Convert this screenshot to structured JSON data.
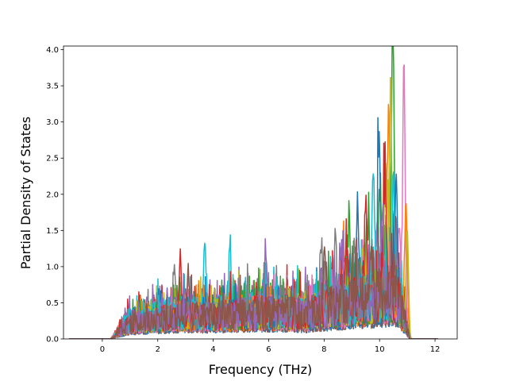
{
  "chart_data": {
    "type": "line",
    "title": "",
    "xlabel": "Frequency (THz)",
    "ylabel": "Partial Density of States",
    "xlim": [
      -1.4,
      12.8
    ],
    "ylim": [
      0.0,
      4.05
    ],
    "xticks": [
      0,
      2,
      4,
      6,
      8,
      10,
      12
    ],
    "xtick_labels": [
      "0",
      "2",
      "4",
      "6",
      "8",
      "10",
      "12"
    ],
    "yticks": [
      0.0,
      0.5,
      1.0,
      1.5,
      2.0,
      2.5,
      3.0,
      3.5,
      4.0
    ],
    "ytick_labels": [
      "0.0",
      "0.5",
      "1.0",
      "1.5",
      "2.0",
      "2.5",
      "3.0",
      "3.5",
      "4.0"
    ],
    "grid": false,
    "legend": "none",
    "x_range_of_data": [
      -1.2,
      12.1
    ],
    "series_colors": [
      "#1f77b4",
      "#ff7f0e",
      "#2ca02c",
      "#d62728",
      "#9467bd",
      "#8c564b",
      "#e377c2",
      "#7f7f7f",
      "#bcbd22",
      "#17becf"
    ],
    "series": [
      {
        "color": "#2ca02c",
        "peaks": [
          [
            10.48,
            3.87
          ],
          [
            10.02,
            1.6
          ],
          [
            8.9,
            1.3
          ],
          [
            9.6,
            1.2
          ]
        ]
      },
      {
        "color": "#e377c2",
        "peaks": [
          [
            10.88,
            3.45
          ],
          [
            10.7,
            1.2
          ],
          [
            9.9,
            0.95
          ]
        ]
      },
      {
        "color": "#ff7f0e",
        "peaks": [
          [
            10.32,
            2.55
          ],
          [
            10.95,
            1.65
          ],
          [
            8.7,
            1.0
          ]
        ]
      },
      {
        "color": "#bcbd22",
        "peaks": [
          [
            10.4,
            2.95
          ],
          [
            10.22,
            1.75
          ],
          [
            11.0,
            1.35
          ],
          [
            9.4,
            0.9
          ]
        ]
      },
      {
        "color": "#1f77b4",
        "peaks": [
          [
            9.98,
            2.17
          ],
          [
            9.2,
            1.45
          ],
          [
            10.6,
            1.2
          ]
        ]
      },
      {
        "color": "#17becf",
        "peaks": [
          [
            9.78,
            1.82
          ],
          [
            10.5,
            1.5
          ],
          [
            3.7,
            1.07
          ],
          [
            4.6,
            0.9
          ]
        ]
      },
      {
        "color": "#d62728",
        "peaks": [
          [
            10.2,
            1.8
          ],
          [
            9.5,
            1.3
          ],
          [
            2.8,
            0.8
          ],
          [
            8.8,
            1.0
          ]
        ]
      },
      {
        "color": "#7f7f7f",
        "peaks": [
          [
            7.9,
            1.0
          ],
          [
            8.4,
            0.95
          ],
          [
            9.1,
            0.9
          ],
          [
            2.6,
            0.75
          ]
        ]
      },
      {
        "color": "#9467bd",
        "peaks": [
          [
            5.9,
            0.92
          ],
          [
            8.6,
            0.9
          ],
          [
            10.1,
            1.1
          ]
        ]
      },
      {
        "color": "#8c564b",
        "peaks": [
          [
            8.0,
            0.85
          ],
          [
            9.7,
            1.0
          ],
          [
            3.1,
            0.7
          ]
        ]
      }
    ]
  }
}
